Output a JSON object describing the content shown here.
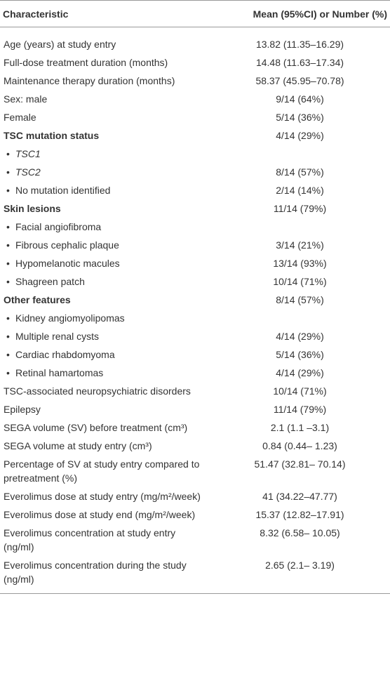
{
  "table": {
    "header": [
      "Characteristic",
      "Mean (95%CI) or Number (%)"
    ],
    "rows": [
      {
        "label": "Age (years) at study entry",
        "value": "13.82 (11.35–16.29)"
      },
      {
        "label": "Full-dose treatment duration (months)",
        "value": "14.48 (11.63–17.34)"
      },
      {
        "label": "Maintenance therapy duration (months)",
        "value": "58.37 (45.95–70.78)"
      },
      {
        "label": "Sex: male",
        "value": "9/14 (64%)"
      },
      {
        "label": "Female",
        "value": "5/14 (36%)"
      },
      {
        "label": "TSC mutation status",
        "value": "4/14 (29%)",
        "bold": true
      },
      {
        "label": "TSC1",
        "value": null,
        "bullet": true,
        "italic": true
      },
      {
        "label": "TSC2",
        "value": "8/14 (57%)",
        "bullet": true,
        "italic": true
      },
      {
        "label": "No mutation identified",
        "value": "2/14 (14%)",
        "bullet": true
      },
      {
        "label": "Skin lesions",
        "value": "11/14 (79%)",
        "bold": true
      },
      {
        "label": "Facial angiofibroma",
        "value": null,
        "bullet": true
      },
      {
        "label": "Fibrous cephalic plaque",
        "value": "3/14 (21%)",
        "bullet": true
      },
      {
        "label": "Hypomelanotic macules",
        "value": "13/14 (93%)",
        "bullet": true
      },
      {
        "label": "Shagreen patch",
        "value": "10/14 (71%)",
        "bullet": true
      },
      {
        "label": "Other features",
        "value": "8/14 (57%)",
        "bold": true
      },
      {
        "label": "Kidney angiomyolipomas",
        "value": null,
        "bullet": true
      },
      {
        "label": "Multiple renal cysts",
        "value": "4/14 (29%)",
        "bullet": true
      },
      {
        "label": "Cardiac rhabdomyoma",
        "value": "5/14 (36%)",
        "bullet": true
      },
      {
        "label": "Retinal hamartomas",
        "value": "4/14 (29%)",
        "bullet": true
      },
      {
        "label": "TSC-associated neuropsychiatric disorders",
        "value": "10/14 (71%)"
      },
      {
        "label": "Epilepsy",
        "value": "11/14 (79%)"
      },
      {
        "label": "SEGA volume (SV) before treatment (cm³)",
        "value": "2.1 (1.1 –3.1)"
      },
      {
        "label": "SEGA volume at study entry (cm³)",
        "value": "0.84 (0.44– 1.23)"
      },
      {
        "label": "Percentage of SV at study entry compared to pretreatment (%)",
        "value": "51.47 (32.81– 70.14)"
      },
      {
        "label": "Everolimus dose at study entry (mg/m²/week)",
        "value": "41 (34.22–47.77)"
      },
      {
        "label": "Everolimus dose at study end (mg/m²/week)",
        "value": "15.37 (12.82–17.91)"
      },
      {
        "label": "Everolimus concentration at study entry (ng/ml)",
        "value": "8.32 (6.58– 10.05)"
      },
      {
        "label": "Everolimus concentration during the study (ng/ml)",
        "value": "2.65 (2.1– 3.19)"
      }
    ]
  }
}
